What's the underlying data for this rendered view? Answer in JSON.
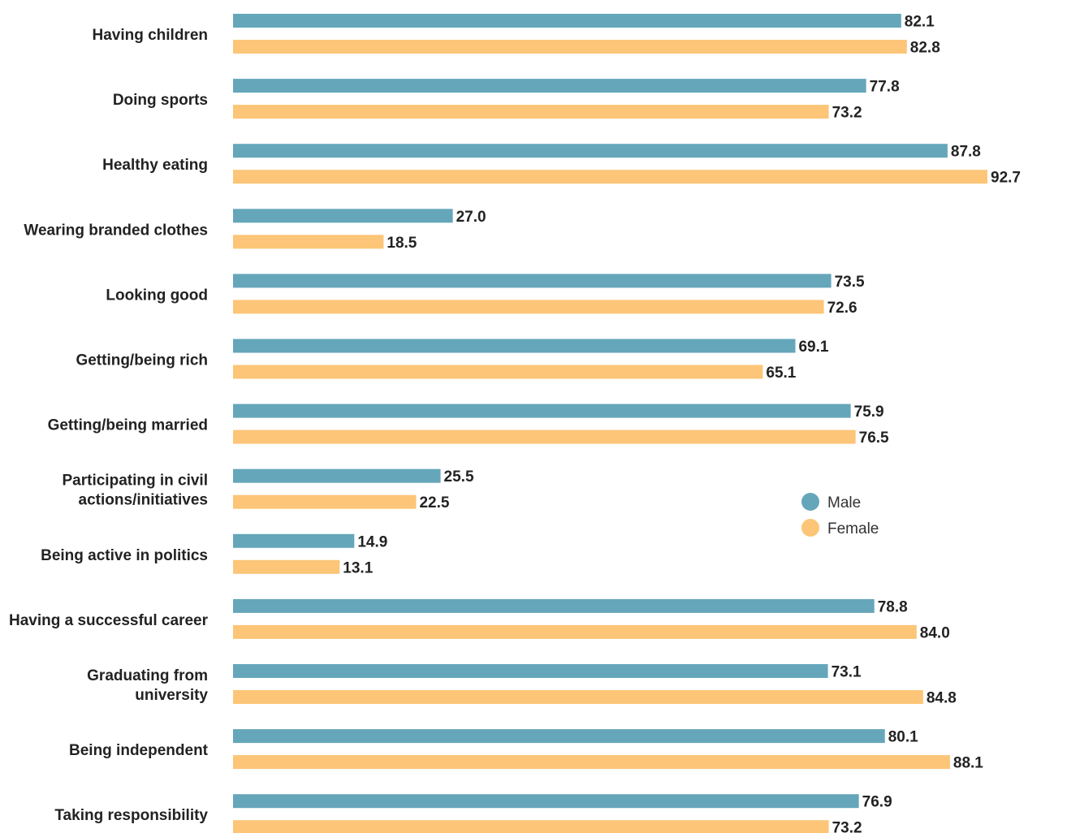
{
  "chart_data": {
    "type": "bar",
    "orientation": "horizontal",
    "categories": [
      "Having children",
      "Doing sports",
      "Healthy eating",
      "Wearing branded clothes",
      "Looking good",
      "Getting/being rich",
      "Getting/being married",
      "Participating in civil actions/initiatives",
      "Being active in politics",
      "Having a successful career",
      "Graduating from university",
      "Being independent",
      "Taking responsibility"
    ],
    "category_lines": [
      [
        "Having children"
      ],
      [
        "Doing sports"
      ],
      [
        "Healthy eating"
      ],
      [
        "Wearing branded clothes"
      ],
      [
        "Looking good"
      ],
      [
        "Getting/being rich"
      ],
      [
        "Getting/being married"
      ],
      [
        "Participating in civil",
        "actions/initiatives"
      ],
      [
        "Being active in politics"
      ],
      [
        "Having a successful career"
      ],
      [
        "Graduating from",
        "university"
      ],
      [
        "Being independent"
      ],
      [
        "Taking responsibility"
      ]
    ],
    "series": [
      {
        "name": "Male",
        "color": "#65a6ba",
        "values": [
          82.1,
          77.8,
          87.8,
          27.0,
          73.5,
          69.1,
          75.9,
          25.5,
          14.9,
          78.8,
          73.1,
          80.1,
          76.9
        ],
        "labels": [
          "82.1",
          "77.8",
          "87.8",
          "27.0",
          "73.5",
          "69.1",
          "75.9",
          "25.5",
          "14.9",
          "78.8",
          "73.1",
          "80.1",
          "76.9"
        ]
      },
      {
        "name": "Female",
        "color": "#fcc577",
        "values": [
          82.8,
          73.2,
          92.7,
          18.5,
          72.6,
          65.1,
          76.5,
          22.5,
          13.1,
          84.0,
          84.8,
          88.1,
          73.2
        ],
        "labels": [
          "82.8",
          "73.2",
          "92.7",
          "18.5",
          "72.6",
          "65.1",
          "76.5",
          "22.5",
          "13.1",
          "84.0",
          "84.8",
          "88.1",
          "73.2"
        ]
      }
    ],
    "xlim": [
      0,
      100
    ],
    "grid": false,
    "legend": "center-right"
  }
}
